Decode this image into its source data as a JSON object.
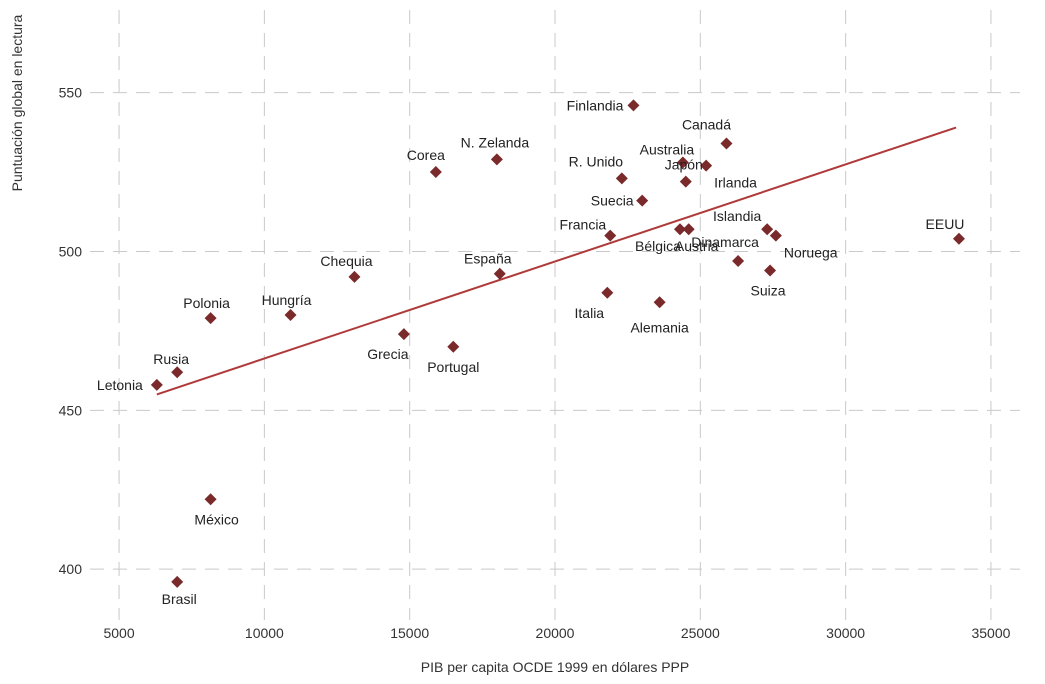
{
  "chart_data": {
    "type": "scatter",
    "xlabel": "PIB per capita OCDE 1999 en dólares PPP",
    "ylabel": "Puntuación global en lectura",
    "xlim": [
      4000,
      36000
    ],
    "ylim": [
      384,
      576
    ],
    "xticks": [
      5000,
      10000,
      15000,
      20000,
      25000,
      30000,
      35000
    ],
    "yticks": [
      400,
      450,
      500,
      550
    ],
    "grid": true,
    "marker_color": "#7a2a2a",
    "trend_color": "#b03a3a",
    "points": [
      {
        "label": "Letonia",
        "x": 6300,
        "y": 458
      },
      {
        "label": "Rusia",
        "x": 7000,
        "y": 462
      },
      {
        "label": "Polonia",
        "x": 8150,
        "y": 479
      },
      {
        "label": "México",
        "x": 8150,
        "y": 422
      },
      {
        "label": "Brasil",
        "x": 7000,
        "y": 396
      },
      {
        "label": "Hungría",
        "x": 10900,
        "y": 480
      },
      {
        "label": "Chequia",
        "x": 13100,
        "y": 492
      },
      {
        "label": "Grecia",
        "x": 14800,
        "y": 474
      },
      {
        "label": "Corea",
        "x": 15900,
        "y": 525
      },
      {
        "label": "Portugal",
        "x": 16500,
        "y": 470
      },
      {
        "label": "N. Zelanda",
        "x": 18000,
        "y": 529
      },
      {
        "label": "España",
        "x": 18100,
        "y": 493
      },
      {
        "label": "Italia",
        "x": 21800,
        "y": 487
      },
      {
        "label": "Francia",
        "x": 21900,
        "y": 505
      },
      {
        "label": "R. Unido",
        "x": 22300,
        "y": 523
      },
      {
        "label": "Finlandia",
        "x": 22700,
        "y": 546
      },
      {
        "label": "Suecia",
        "x": 23000,
        "y": 516
      },
      {
        "label": "Alemania",
        "x": 23600,
        "y": 484
      },
      {
        "label": "Australia",
        "x": 24400,
        "y": 528
      },
      {
        "label": "Bélgica",
        "x": 24300,
        "y": 507
      },
      {
        "label": "Japón",
        "x": 24500,
        "y": 522
      },
      {
        "label": "Austria",
        "x": 24600,
        "y": 507
      },
      {
        "label": "Irlanda",
        "x": 25200,
        "y": 527
      },
      {
        "label": "Dinamarca",
        "x": 26300,
        "y": 497
      },
      {
        "label": "Canadá",
        "x": 25900,
        "y": 534
      },
      {
        "label": "Islandia",
        "x": 27300,
        "y": 507
      },
      {
        "label": "Noruega",
        "x": 27600,
        "y": 505
      },
      {
        "label": "Suiza",
        "x": 27400,
        "y": 494
      },
      {
        "label": "EEUU",
        "x": 33900,
        "y": 504
      }
    ],
    "trendline": {
      "x": [
        6300,
        33800
      ],
      "y": [
        455,
        539
      ]
    }
  }
}
